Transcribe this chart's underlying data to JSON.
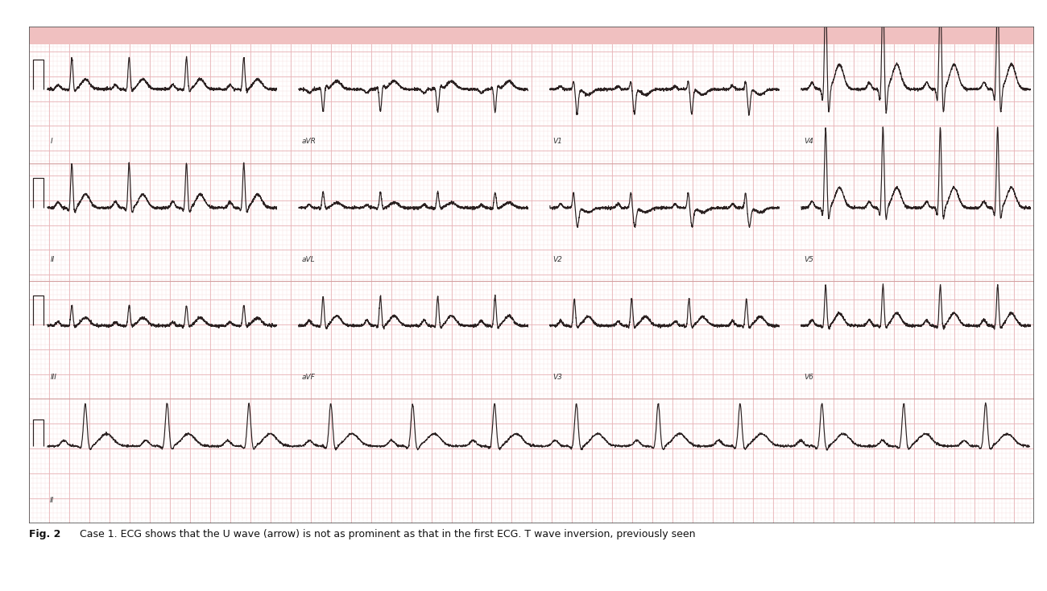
{
  "caption": "Fig. 2 Case 1. ECG shows that the U wave (arrow) is not as prominent as that in the first ECG. T wave inversion, previously seen",
  "bg_color": "#FFFFFF",
  "ecg_bg_color": "#FFFFFF",
  "grid_major_color": "#E8B4B8",
  "grid_minor_color": "#F5DADA",
  "ecg_color": "#2A2020",
  "caption_fontsize": 9.0,
  "figure_width": 13.0,
  "figure_height": 7.34,
  "dpi": 100,
  "ecg_linewidth": 0.85,
  "border_color": "#333333",
  "row_labels": [
    [
      "I",
      "aVR",
      "V1",
      "V4"
    ],
    [
      "II",
      "aVL",
      "V2",
      "V5"
    ],
    [
      "III",
      "aVF",
      "V3",
      "V6"
    ],
    [
      "II"
    ]
  ],
  "top_strip_color": "#F0C0C0",
  "separator_color": "#D4A0A0"
}
